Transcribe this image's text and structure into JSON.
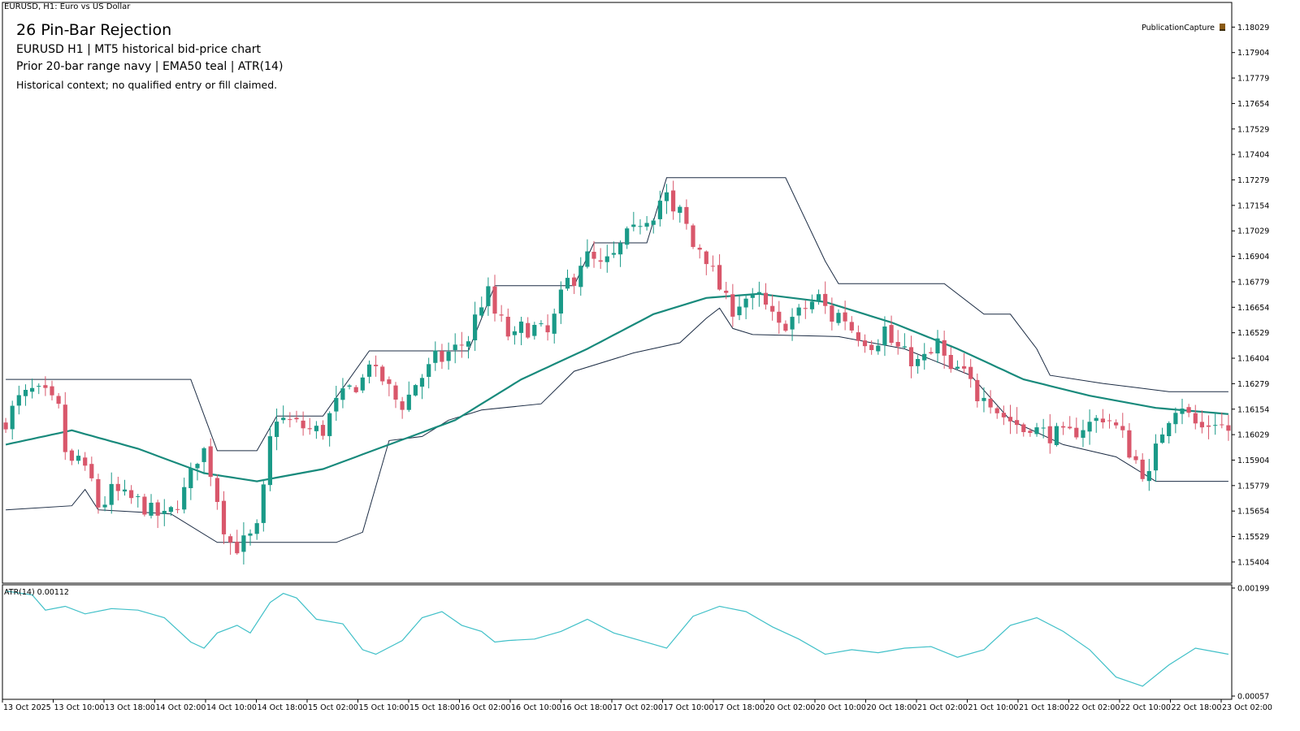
{
  "window": {
    "symbol_header": "EURUSD, H1:  Euro vs US Dollar",
    "publication_label": "PublicationCapture",
    "publication_icon": "chart-capture-icon"
  },
  "overlay": {
    "title": "26  Pin-Bar Rejection",
    "line2": "EURUSD  H1  |  MT5 historical bid-price chart",
    "line3": "Prior 20-bar range navy | EMA50 teal | ATR(14)",
    "line4": "Historical context; no qualified entry or fill claimed."
  },
  "colors": {
    "bull": "#1a9a88",
    "bear": "#d9576b",
    "ema": "#188a7c",
    "range": "#1c2c44",
    "atr": "#40c0c8",
    "frame": "#000000"
  },
  "chart_data": [
    {
      "type": "candlestick",
      "symbol": "EURUSD",
      "timeframe": "H1",
      "ylim": [
        1.153,
        1.1815
      ],
      "y_ticks": [
        "1.18029",
        "1.17904",
        "1.17779",
        "1.17654",
        "1.17529",
        "1.17404",
        "1.17279",
        "1.17154",
        "1.17029",
        "1.16904",
        "1.16779",
        "1.16654",
        "1.16529",
        "1.16404",
        "1.16279",
        "1.16154",
        "1.16029",
        "1.15904",
        "1.15779",
        "1.15654",
        "1.15529",
        "1.15404"
      ],
      "x_ticks": [
        "13 Oct 2025",
        "13 Oct 10:00",
        "13 Oct 18:00",
        "14 Oct 02:00",
        "14 Oct 10:00",
        "14 Oct 18:00",
        "15 Oct 02:00",
        "15 Oct 10:00",
        "15 Oct 18:00",
        "16 Oct 02:00",
        "16 Oct 10:00",
        "16 Oct 18:00",
        "17 Oct 02:00",
        "17 Oct 10:00",
        "17 Oct 18:00",
        "20 Oct 02:00",
        "20 Oct 10:00",
        "20 Oct 18:00",
        "21 Oct 02:00",
        "21 Oct 10:00",
        "21 Oct 18:00",
        "22 Oct 02:00",
        "22 Oct 10:00",
        "22 Oct 18:00",
        "23 Oct 02:00"
      ],
      "close_path": [
        [
          0,
          1.161
        ],
        [
          2,
          1.162
        ],
        [
          4,
          1.1624
        ],
        [
          6,
          1.1622
        ],
        [
          8,
          1.1615
        ],
        [
          9,
          1.1595
        ],
        [
          10,
          1.1588
        ],
        [
          11,
          1.1592
        ],
        [
          12,
          1.1584
        ],
        [
          13,
          1.158
        ],
        [
          14,
          1.1568
        ],
        [
          15,
          1.157
        ],
        [
          16,
          1.1575
        ],
        [
          17,
          1.1574
        ],
        [
          18,
          1.1572
        ],
        [
          20,
          1.157
        ],
        [
          22,
          1.1565
        ],
        [
          24,
          1.1562
        ],
        [
          25,
          1.1565
        ],
        [
          26,
          1.157
        ],
        [
          27,
          1.1575
        ],
        [
          28,
          1.1583
        ],
        [
          29,
          1.1592
        ],
        [
          30,
          1.1595
        ],
        [
          31,
          1.1585
        ],
        [
          32,
          1.1572
        ],
        [
          33,
          1.1558
        ],
        [
          34,
          1.155
        ],
        [
          35,
          1.1548
        ],
        [
          36,
          1.155
        ],
        [
          37,
          1.1552
        ],
        [
          38,
          1.1556
        ],
        [
          39,
          1.1575
        ],
        [
          40,
          1.16
        ],
        [
          41,
          1.1612
        ],
        [
          42,
          1.161
        ],
        [
          44,
          1.1608
        ],
        [
          46,
          1.1605
        ],
        [
          48,
          1.1605
        ],
        [
          49,
          1.1612
        ],
        [
          50,
          1.1618
        ],
        [
          52,
          1.1625
        ],
        [
          54,
          1.163
        ],
        [
          55,
          1.164
        ],
        [
          56,
          1.1632
        ],
        [
          57,
          1.163
        ],
        [
          58,
          1.1625
        ],
        [
          59,
          1.162
        ],
        [
          60,
          1.1618
        ],
        [
          61,
          1.1622
        ],
        [
          62,
          1.1628
        ],
        [
          64,
          1.1635
        ],
        [
          65,
          1.164
        ],
        [
          66,
          1.164
        ],
        [
          67,
          1.1643
        ],
        [
          68,
          1.1645
        ],
        [
          70,
          1.165
        ],
        [
          71,
          1.166
        ],
        [
          72,
          1.1668
        ],
        [
          73,
          1.1672
        ],
        [
          74,
          1.1662
        ],
        [
          75,
          1.1658
        ],
        [
          76,
          1.1652
        ],
        [
          77,
          1.165
        ],
        [
          78,
          1.1655
        ],
        [
          80,
          1.1655
        ],
        [
          82,
          1.1652
        ],
        [
          83,
          1.166
        ],
        [
          84,
          1.167
        ],
        [
          85,
          1.1678
        ],
        [
          86,
          1.168
        ],
        [
          87,
          1.1688
        ],
        [
          88,
          1.169
        ],
        [
          90,
          1.1685
        ],
        [
          92,
          1.169
        ],
        [
          94,
          1.17
        ],
        [
          95,
          1.1702
        ],
        [
          96,
          1.1708
        ],
        [
          98,
          1.1712
        ],
        [
          99,
          1.1718
        ],
        [
          100,
          1.172
        ],
        [
          101,
          1.171
        ],
        [
          102,
          1.1712
        ],
        [
          103,
          1.1705
        ],
        [
          104,
          1.1695
        ],
        [
          105,
          1.1695
        ],
        [
          106,
          1.169
        ],
        [
          107,
          1.1682
        ],
        [
          108,
          1.1675
        ],
        [
          109,
          1.1668
        ],
        [
          110,
          1.1665
        ],
        [
          111,
          1.1668
        ],
        [
          112,
          1.167
        ],
        [
          113,
          1.1668
        ],
        [
          114,
          1.167
        ],
        [
          115,
          1.1665
        ],
        [
          116,
          1.166
        ],
        [
          117,
          1.1655
        ],
        [
          118,
          1.1658
        ],
        [
          119,
          1.166
        ],
        [
          120,
          1.1662
        ],
        [
          121,
          1.1665
        ],
        [
          122,
          1.1668
        ],
        [
          123,
          1.167
        ],
        [
          124,
          1.1665
        ],
        [
          125,
          1.166
        ],
        [
          126,
          1.1662
        ],
        [
          127,
          1.166
        ],
        [
          128,
          1.1655
        ],
        [
          129,
          1.1652
        ],
        [
          130,
          1.165
        ],
        [
          131,
          1.1648
        ],
        [
          132,
          1.165
        ],
        [
          133,
          1.1655
        ],
        [
          134,
          1.1648
        ],
        [
          135,
          1.1645
        ],
        [
          136,
          1.1642
        ],
        [
          137,
          1.164
        ],
        [
          138,
          1.1638
        ],
        [
          139,
          1.164
        ],
        [
          140,
          1.1642
        ],
        [
          141,
          1.1648
        ],
        [
          142,
          1.164
        ],
        [
          143,
          1.1632
        ],
        [
          144,
          1.1635
        ],
        [
          145,
          1.1632
        ],
        [
          146,
          1.1628
        ],
        [
          147,
          1.1622
        ],
        [
          148,
          1.1625
        ],
        [
          149,
          1.162
        ],
        [
          150,
          1.1615
        ],
        [
          151,
          1.1612
        ],
        [
          152,
          1.161
        ],
        [
          153,
          1.1608
        ],
        [
          154,
          1.1605
        ],
        [
          155,
          1.1608
        ],
        [
          156,
          1.1605
        ],
        [
          157,
          1.1604
        ],
        [
          158,
          1.1603
        ],
        [
          159,
          1.1603
        ],
        [
          160,
          1.1602
        ],
        [
          161,
          1.1603
        ],
        [
          162,
          1.1605
        ],
        [
          163,
          1.1607
        ],
        [
          164,
          1.1608
        ],
        [
          165,
          1.161
        ],
        [
          166,
          1.1612
        ],
        [
          167,
          1.161
        ],
        [
          168,
          1.1606
        ],
        [
          169,
          1.1602
        ],
        [
          170,
          1.1595
        ],
        [
          171,
          1.159
        ],
        [
          172,
          1.1585
        ],
        [
          173,
          1.1582
        ],
        [
          174,
          1.1595
        ],
        [
          175,
          1.1605
        ],
        [
          176,
          1.1612
        ],
        [
          177,
          1.1617
        ],
        [
          178,
          1.1618
        ],
        [
          179,
          1.1612
        ],
        [
          180,
          1.1608
        ],
        [
          181,
          1.1606
        ],
        [
          182,
          1.1608
        ],
        [
          183,
          1.161
        ],
        [
          184,
          1.1607
        ],
        [
          185,
          1.1605
        ]
      ]
    },
    {
      "type": "line",
      "series_label": "EMA50",
      "points": [
        [
          0,
          1.1598
        ],
        [
          10,
          1.1605
        ],
        [
          20,
          1.1596
        ],
        [
          30,
          1.1584
        ],
        [
          38,
          1.158
        ],
        [
          48,
          1.1586
        ],
        [
          58,
          1.1598
        ],
        [
          68,
          1.161
        ],
        [
          78,
          1.163
        ],
        [
          88,
          1.1645
        ],
        [
          98,
          1.1662
        ],
        [
          106,
          1.167
        ],
        [
          114,
          1.1672
        ],
        [
          124,
          1.1668
        ],
        [
          134,
          1.1658
        ],
        [
          144,
          1.1645
        ],
        [
          154,
          1.163
        ],
        [
          164,
          1.1622
        ],
        [
          174,
          1.1616
        ],
        [
          185,
          1.1613
        ]
      ]
    },
    {
      "type": "step",
      "series_label": "Prior 20-bar range high",
      "points": [
        [
          0,
          1.163
        ],
        [
          28,
          1.163
        ],
        [
          32,
          1.1595
        ],
        [
          38,
          1.1595
        ],
        [
          41,
          1.1612
        ],
        [
          48,
          1.1612
        ],
        [
          55,
          1.1644
        ],
        [
          70,
          1.1644
        ],
        [
          74,
          1.1676
        ],
        [
          86,
          1.1676
        ],
        [
          89,
          1.1697
        ],
        [
          97,
          1.1697
        ],
        [
          100,
          1.1729
        ],
        [
          118,
          1.1729
        ],
        [
          124,
          1.1688
        ],
        [
          126,
          1.1677
        ],
        [
          142,
          1.1677
        ],
        [
          148,
          1.1662
        ],
        [
          152,
          1.1662
        ],
        [
          156,
          1.1645
        ],
        [
          158,
          1.1632
        ],
        [
          166,
          1.1628
        ],
        [
          176,
          1.1624
        ],
        [
          185,
          1.1624
        ]
      ]
    },
    {
      "type": "step",
      "series_label": "Prior 20-bar range low",
      "points": [
        [
          0,
          1.1566
        ],
        [
          10,
          1.1568
        ],
        [
          12,
          1.1576
        ],
        [
          14,
          1.1566
        ],
        [
          25,
          1.1564
        ],
        [
          32,
          1.155
        ],
        [
          50,
          1.155
        ],
        [
          54,
          1.1555
        ],
        [
          58,
          1.16
        ],
        [
          63,
          1.1602
        ],
        [
          67,
          1.161
        ],
        [
          72,
          1.1615
        ],
        [
          81,
          1.1618
        ],
        [
          86,
          1.1634
        ],
        [
          95,
          1.1643
        ],
        [
          102,
          1.1648
        ],
        [
          106,
          1.166
        ],
        [
          108,
          1.1665
        ],
        [
          110,
          1.1655
        ],
        [
          113,
          1.1652
        ],
        [
          126,
          1.1651
        ],
        [
          136,
          1.1645
        ],
        [
          146,
          1.1632
        ],
        [
          152,
          1.161
        ],
        [
          160,
          1.1598
        ],
        [
          168,
          1.1592
        ],
        [
          174,
          1.158
        ],
        [
          185,
          1.158
        ]
      ]
    },
    {
      "type": "line",
      "series_label": "ATR(14) 0.00112",
      "ylim": [
        0.00057,
        0.00199
      ],
      "y_ticks": [
        "0.00199",
        "0.00057"
      ],
      "points": [
        [
          0,
          0.00195
        ],
        [
          4,
          0.0019
        ],
        [
          6,
          0.0017
        ],
        [
          9,
          0.00175
        ],
        [
          12,
          0.00165
        ],
        [
          16,
          0.00172
        ],
        [
          20,
          0.0017
        ],
        [
          24,
          0.0016
        ],
        [
          28,
          0.00128
        ],
        [
          30,
          0.0012
        ],
        [
          32,
          0.0014
        ],
        [
          35,
          0.0015
        ],
        [
          37,
          0.0014
        ],
        [
          40,
          0.0018
        ],
        [
          42,
          0.00192
        ],
        [
          44,
          0.00186
        ],
        [
          47,
          0.00158
        ],
        [
          51,
          0.00152
        ],
        [
          54,
          0.00118
        ],
        [
          56,
          0.00112
        ],
        [
          60,
          0.0013
        ],
        [
          63,
          0.0016
        ],
        [
          66,
          0.00168
        ],
        [
          69,
          0.0015
        ],
        [
          72,
          0.00142
        ],
        [
          74,
          0.00128
        ],
        [
          76,
          0.0013
        ],
        [
          80,
          0.00132
        ],
        [
          84,
          0.00142
        ],
        [
          88,
          0.00158
        ],
        [
          92,
          0.0014
        ],
        [
          96,
          0.0013
        ],
        [
          100,
          0.0012
        ],
        [
          104,
          0.00162
        ],
        [
          108,
          0.00175
        ],
        [
          112,
          0.00168
        ],
        [
          116,
          0.00148
        ],
        [
          120,
          0.00132
        ],
        [
          124,
          0.00112
        ],
        [
          128,
          0.00118
        ],
        [
          132,
          0.00114
        ],
        [
          136,
          0.0012
        ],
        [
          140,
          0.00122
        ],
        [
          144,
          0.00108
        ],
        [
          148,
          0.00118
        ],
        [
          152,
          0.0015
        ],
        [
          156,
          0.0016
        ],
        [
          160,
          0.00142
        ],
        [
          164,
          0.00118
        ],
        [
          168,
          0.00082
        ],
        [
          172,
          0.0007
        ],
        [
          176,
          0.00098
        ],
        [
          180,
          0.0012
        ],
        [
          185,
          0.00112
        ]
      ]
    }
  ]
}
